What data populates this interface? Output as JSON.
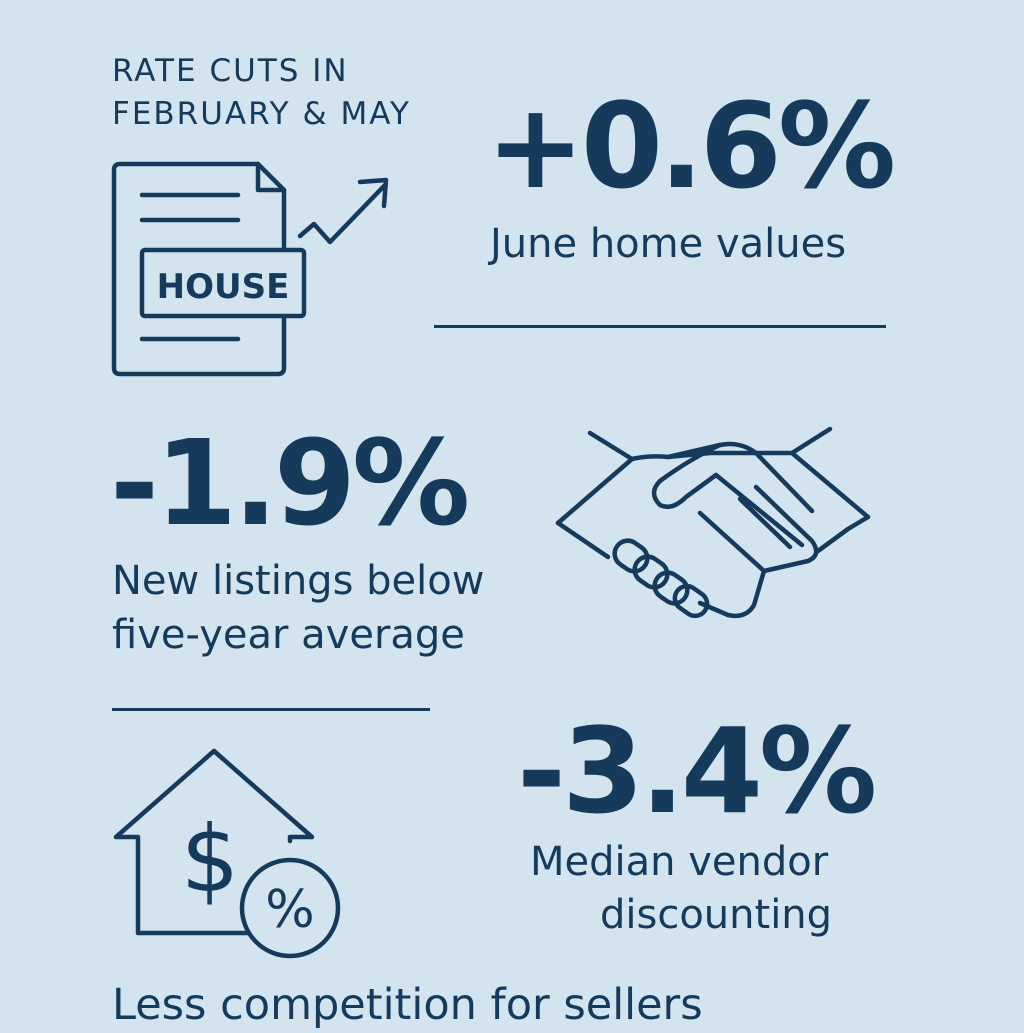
{
  "header": {
    "eyebrow": "RATE CUTS IN FEBRUARY & MAY"
  },
  "stats": [
    {
      "value": "+0.6%",
      "label": "June home values"
    },
    {
      "value": "-1.9%",
      "label_line1": "New listings below",
      "label_line2": "five-year average"
    },
    {
      "value": "-3.4%",
      "label_line1": "Median vendor",
      "label_line2": "discounting"
    }
  ],
  "footer": {
    "text": "Less competition for sellers"
  },
  "icons": {
    "document": "house-document-icon",
    "trend": "trend-up-arrow-icon",
    "handshake": "handshake-icon",
    "house_dollar": "house-dollar-icon",
    "percent_badge": "percent-badge-icon",
    "document_label": "HOUSE",
    "dollar_symbol": "$",
    "percent_symbol": "%"
  },
  "colors": {
    "background": "#d3e4ee",
    "ink": "#153a5b"
  }
}
